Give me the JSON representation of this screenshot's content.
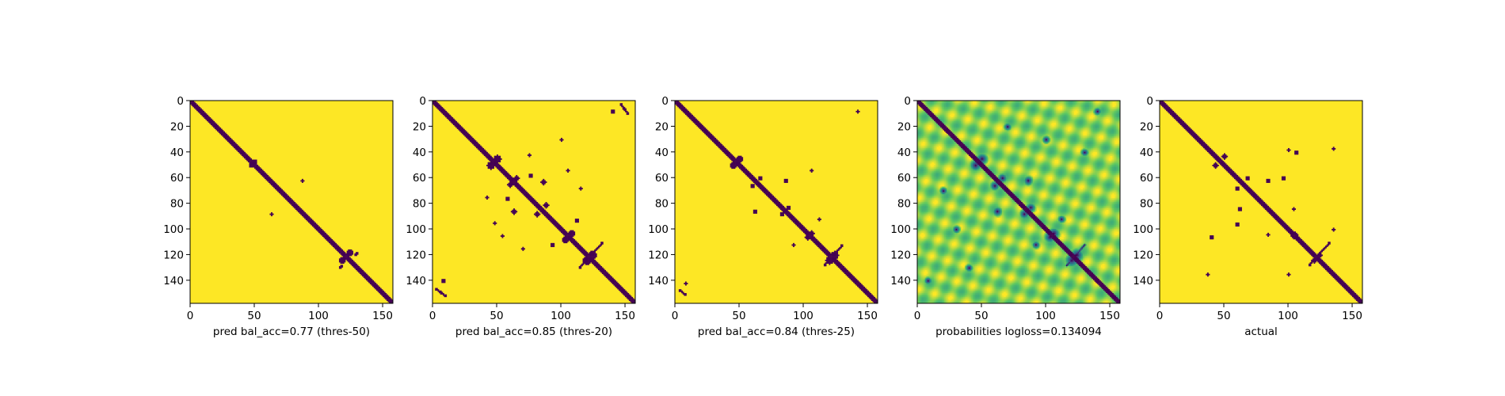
{
  "figure": {
    "colors": {
      "contact": "#440154",
      "background": "#fde725",
      "viridis_stops": [
        "#440154",
        "#3b528b",
        "#21918c",
        "#5ec962",
        "#fde725"
      ]
    }
  },
  "chart_data": [
    {
      "type": "heatmap",
      "title": "",
      "xlabel": "pred bal_acc=0.77 (thres-50)",
      "ylabel": "",
      "size": 158,
      "xlim": [
        0,
        158
      ],
      "ylim": [
        158,
        0
      ],
      "xticks": [
        0,
        50,
        100,
        150
      ],
      "yticks": [
        0,
        20,
        40,
        60,
        80,
        100,
        120,
        140
      ],
      "diagonal_halfwidth": 2.2,
      "grid": false,
      "blobs": [
        [
          50,
          47,
          3
        ],
        [
          47,
          50,
          3
        ],
        [
          62,
          87,
          2
        ],
        [
          88,
          63,
          2
        ],
        [
          124,
          118,
          5
        ],
        [
          118,
          124,
          5
        ]
      ],
      "streaks": [
        [
          118,
          130,
          120,
          128,
          6
        ],
        [
          128,
          118,
          130,
          116,
          6
        ]
      ]
    },
    {
      "type": "heatmap",
      "title": "",
      "xlabel": "pred bal_acc=0.85 (thres-20)",
      "ylabel": "",
      "size": 158,
      "xlim": [
        0,
        158
      ],
      "ylim": [
        158,
        0
      ],
      "xticks": [
        0,
        50,
        100,
        150
      ],
      "yticks": [
        0,
        20,
        40,
        60,
        80,
        100,
        120,
        140
      ],
      "diagonal_halfwidth": 2.6,
      "grid": false,
      "blobs": [
        [
          50,
          45,
          6
        ],
        [
          45,
          50,
          6
        ],
        [
          60,
          65,
          4
        ],
        [
          65,
          60,
          4
        ],
        [
          86,
          63,
          4
        ],
        [
          63,
          86,
          4
        ],
        [
          88,
          81,
          4
        ],
        [
          81,
          88,
          4
        ],
        [
          58,
          76,
          3
        ],
        [
          76,
          58,
          3
        ],
        [
          103,
          108,
          5
        ],
        [
          108,
          103,
          5
        ],
        [
          124,
          120,
          7
        ],
        [
          120,
          124,
          7
        ],
        [
          112,
          93,
          3
        ],
        [
          93,
          112,
          3
        ],
        [
          140,
          8,
          3
        ],
        [
          8,
          140,
          3
        ],
        [
          75,
          42,
          2
        ],
        [
          42,
          75,
          2
        ],
        [
          54,
          105,
          2
        ],
        [
          105,
          54,
          2
        ],
        [
          30,
          100,
          2
        ],
        [
          95,
          48,
          2
        ],
        [
          115,
          70,
          2
        ],
        [
          68,
          115,
          2
        ]
      ],
      "streaks": [
        [
          110,
          132,
          130,
          114,
          9
        ],
        [
          146,
          2,
          152,
          10,
          6
        ],
        [
          2,
          146,
          10,
          152,
          6
        ]
      ]
    },
    {
      "type": "heatmap",
      "title": "",
      "xlabel": "pred bal_acc=0.84 (thres-25)",
      "ylabel": "",
      "size": 158,
      "xlim": [
        0,
        158
      ],
      "ylim": [
        158,
        0
      ],
      "xticks": [
        0,
        50,
        100,
        150
      ],
      "yticks": [
        0,
        20,
        40,
        60,
        80,
        100,
        120,
        140
      ],
      "diagonal_halfwidth": 2.5,
      "grid": false,
      "blobs": [
        [
          50,
          45,
          5
        ],
        [
          45,
          50,
          5
        ],
        [
          60,
          66,
          3
        ],
        [
          66,
          60,
          3
        ],
        [
          86,
          62,
          3
        ],
        [
          62,
          86,
          3
        ],
        [
          88,
          83,
          3
        ],
        [
          83,
          88,
          3
        ],
        [
          103,
          106,
          4
        ],
        [
          106,
          103,
          4
        ],
        [
          124,
          120,
          6
        ],
        [
          120,
          124,
          6
        ],
        [
          112,
          92,
          2
        ],
        [
          92,
          112,
          2
        ],
        [
          142,
          8,
          2
        ],
        [
          8,
          142,
          2
        ],
        [
          54,
          106,
          2
        ]
      ],
      "streaks": [
        [
          112,
          130,
          128,
          116,
          8
        ],
        [
          147,
          3,
          151,
          8,
          4
        ]
      ]
    },
    {
      "type": "heatmap",
      "title": "",
      "xlabel": "probabilities logloss=0.134094",
      "ylabel": "",
      "size": 158,
      "xlim": [
        0,
        158
      ],
      "ylim": [
        158,
        0
      ],
      "xticks": [
        0,
        50,
        100,
        150
      ],
      "yticks": [
        0,
        20,
        40,
        60,
        80,
        100,
        120,
        140
      ],
      "diagonal_halfwidth": 2.5,
      "grid": false,
      "blobs": [
        [
          50,
          45,
          6
        ],
        [
          45,
          50,
          6
        ],
        [
          60,
          66,
          5
        ],
        [
          66,
          60,
          5
        ],
        [
          86,
          62,
          5
        ],
        [
          62,
          86,
          5
        ],
        [
          88,
          83,
          5
        ],
        [
          83,
          88,
          5
        ],
        [
          103,
          106,
          6
        ],
        [
          106,
          103,
          6
        ],
        [
          124,
          120,
          7
        ],
        [
          120,
          124,
          7
        ],
        [
          112,
          92,
          4
        ],
        [
          92,
          112,
          4
        ],
        [
          140,
          8,
          4
        ],
        [
          8,
          140,
          4
        ],
        [
          30,
          100,
          4
        ],
        [
          100,
          30,
          4
        ],
        [
          70,
          20,
          4
        ],
        [
          20,
          70,
          4
        ],
        [
          130,
          40,
          4
        ],
        [
          40,
          130,
          4
        ]
      ],
      "streaks": [
        [
          112,
          130,
          128,
          116,
          8
        ]
      ]
    },
    {
      "type": "heatmap",
      "title": "",
      "xlabel": "actual",
      "ylabel": "",
      "size": 158,
      "xlim": [
        0,
        158
      ],
      "ylim": [
        158,
        0
      ],
      "xticks": [
        0,
        50,
        100,
        150
      ],
      "yticks": [
        0,
        20,
        40,
        60,
        80,
        100,
        120,
        140
      ],
      "diagonal_halfwidth": 2.2,
      "grid": false,
      "blobs": [
        [
          50,
          43,
          4
        ],
        [
          43,
          50,
          4
        ],
        [
          60,
          68,
          3
        ],
        [
          68,
          60,
          3
        ],
        [
          84,
          62,
          3
        ],
        [
          62,
          84,
          3
        ],
        [
          84,
          84,
          3
        ],
        [
          104,
          105,
          4
        ],
        [
          105,
          104,
          4
        ],
        [
          96,
          60,
          3
        ],
        [
          60,
          96,
          3
        ],
        [
          106,
          40,
          3
        ],
        [
          40,
          106,
          3
        ],
        [
          124,
          120,
          4
        ],
        [
          120,
          124,
          4
        ],
        [
          100,
          135,
          2
        ],
        [
          135,
          100,
          2
        ],
        [
          38,
          100,
          2
        ],
        [
          37,
          135,
          2
        ],
        [
          135,
          37,
          2
        ],
        [
          104,
          84,
          2
        ],
        [
          84,
          104,
          2
        ]
      ],
      "streaks": [
        [
          110,
          132,
          128,
          116,
          6
        ]
      ]
    }
  ]
}
